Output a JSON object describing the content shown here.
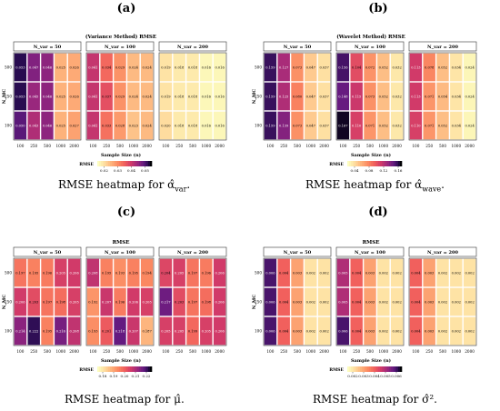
{
  "figure": {
    "captions": [
      {
        "text": "RMSE heatmap for α̂",
        "sub": "var",
        "end": "."
      },
      {
        "text": "RMSE heatmap for α̂",
        "sub": "wave",
        "end": "."
      },
      {
        "text": "RMSE heatmap for μ̂.",
        "sub": "",
        "end": ""
      },
      {
        "text": "RMSE heatmap for σ̂",
        "sub": "",
        "end": "²."
      }
    ],
    "panel_labels": [
      "(a)",
      "(b)",
      "(c)",
      "(d)"
    ]
  },
  "chart_data": [
    {
      "type": "heatmap",
      "title": "(Variance Method) RMSE",
      "xlabel": "Sample Size (n)",
      "ylabel": "N_MC",
      "facets": [
        "N_var = 50",
        "N_var = 100",
        "N_var = 200"
      ],
      "x": [
        "100",
        "250",
        "500",
        "1000",
        "2000"
      ],
      "y": [
        "500",
        "250",
        "100"
      ],
      "colorbar": {
        "title": "RMSE",
        "ticks": [
          "0.02",
          "0.03",
          "0.04",
          "0.05"
        ],
        "range": [
          0.015,
          0.055
        ]
      },
      "values": [
        [
          [
            0.053,
            0.047,
            0.046,
            0.025,
            0.026
          ],
          [
            0.053,
            0.045,
            0.046,
            0.025,
            0.026
          ],
          [
            0.05,
            0.043,
            0.046,
            0.025,
            0.027
          ]
        ],
        [
          [
            0.041,
            0.034,
            0.029,
            0.024,
            0.024
          ],
          [
            0.041,
            0.037,
            0.029,
            0.024,
            0.024
          ],
          [
            0.041,
            0.033,
            0.028,
            0.023,
            0.024
          ]
        ],
        [
          [
            0.019,
            0.018,
            0.018,
            0.016,
            0.016
          ],
          [
            0.019,
            0.018,
            0.018,
            0.016,
            0.016
          ],
          [
            0.02,
            0.018,
            0.018,
            0.016,
            0.016
          ]
        ]
      ]
    },
    {
      "type": "heatmap",
      "title": "(Wavelet Method) RMSE",
      "xlabel": "Sample Size (n)",
      "ylabel": "N_MC",
      "facets": [
        "N_var = 50",
        "N_var = 100",
        "N_var = 200"
      ],
      "x": [
        "100",
        "250",
        "500",
        "1000",
        "2000"
      ],
      "y": [
        "500",
        "250",
        "100"
      ],
      "colorbar": {
        "title": "RMSE",
        "ticks": [
          "0.04",
          "0.08",
          "0.12",
          "0.16"
        ],
        "range": [
          0.02,
          0.17
        ]
      },
      "values": [
        [
          [
            0.159,
            0.127,
            0.073,
            0.047,
            0.037
          ],
          [
            0.159,
            0.125,
            0.08,
            0.047,
            0.037
          ],
          [
            0.159,
            0.139,
            0.073,
            0.047,
            0.037
          ]
        ],
        [
          [
            0.156,
            0.104,
            0.072,
            0.052,
            0.032
          ],
          [
            0.148,
            0.115,
            0.073,
            0.052,
            0.032
          ],
          [
            0.167,
            0.11,
            0.071,
            0.052,
            0.032
          ]
        ],
        [
          [
            0.113,
            0.078,
            0.052,
            0.034,
            0.024
          ],
          [
            0.113,
            0.071,
            0.054,
            0.034,
            0.024
          ],
          [
            0.11,
            0.071,
            0.052,
            0.034,
            0.024
          ]
        ]
      ]
    },
    {
      "type": "heatmap",
      "title": "RMSE",
      "xlabel": "Sample Size (n)",
      "ylabel": "N_MC",
      "facets": [
        "N_var = 50",
        "N_var = 100",
        "N_var = 200"
      ],
      "x": [
        "100",
        "250",
        "500",
        "1000",
        "2000"
      ],
      "y": [
        "500",
        "250",
        "100"
      ],
      "colorbar": {
        "title": "RMSE",
        "ticks": [
          "0.18",
          "0.19",
          "0.20",
          "0.21",
          "0.22"
        ],
        "range": [
          0.175,
          0.225
        ]
      },
      "values": [
        [
          [
            0.197,
            0.195,
            0.196,
            0.205,
            0.206
          ],
          [
            0.206,
            0.203,
            0.197,
            0.198,
            0.205
          ],
          [
            0.214,
            0.222,
            0.195,
            0.216,
            0.208
          ]
        ],
        [
          [
            0.208,
            0.195,
            0.193,
            0.195,
            0.194
          ],
          [
            0.192,
            0.207,
            0.196,
            0.206,
            0.205
          ],
          [
            0.193,
            0.201,
            0.218,
            0.207,
            0.187
          ]
        ],
        [
          [
            0.204,
            0.205,
            0.197,
            0.196,
            0.206
          ],
          [
            0.217,
            0.203,
            0.197,
            0.198,
            0.206
          ],
          [
            0.205,
            0.205,
            0.199,
            0.205,
            0.206
          ]
        ]
      ]
    },
    {
      "type": "heatmap",
      "title": "RMSE",
      "xlabel": "Sample Size (n)",
      "ylabel": "N_MC",
      "facets": [
        "N_var = 50",
        "N_var = 100",
        "N_var = 200"
      ],
      "x": [
        "100",
        "250",
        "500",
        "1000",
        "2000"
      ],
      "y": [
        "500",
        "250",
        "100"
      ],
      "colorbar": {
        "title": "RMSE",
        "ticks": [
          "0.002",
          "0.003",
          "0.004",
          "0.005",
          "0.006"
        ],
        "range": [
          0.0015,
          0.0065
        ]
      },
      "values": [
        [
          [
            0.006,
            0.004,
            0.003,
            0.002,
            0.002
          ],
          [
            0.006,
            0.004,
            0.003,
            0.002,
            0.002
          ],
          [
            0.006,
            0.004,
            0.003,
            0.002,
            0.002
          ]
        ],
        [
          [
            0.005,
            0.004,
            0.003,
            0.002,
            0.002
          ],
          [
            0.005,
            0.004,
            0.003,
            0.002,
            0.002
          ],
          [
            0.006,
            0.004,
            0.003,
            0.002,
            0.002
          ]
        ],
        [
          [
            0.004,
            0.003,
            0.002,
            0.002,
            0.002
          ],
          [
            0.004,
            0.003,
            0.002,
            0.002,
            0.002
          ],
          [
            0.004,
            0.003,
            0.002,
            0.002,
            0.002
          ]
        ]
      ]
    }
  ]
}
